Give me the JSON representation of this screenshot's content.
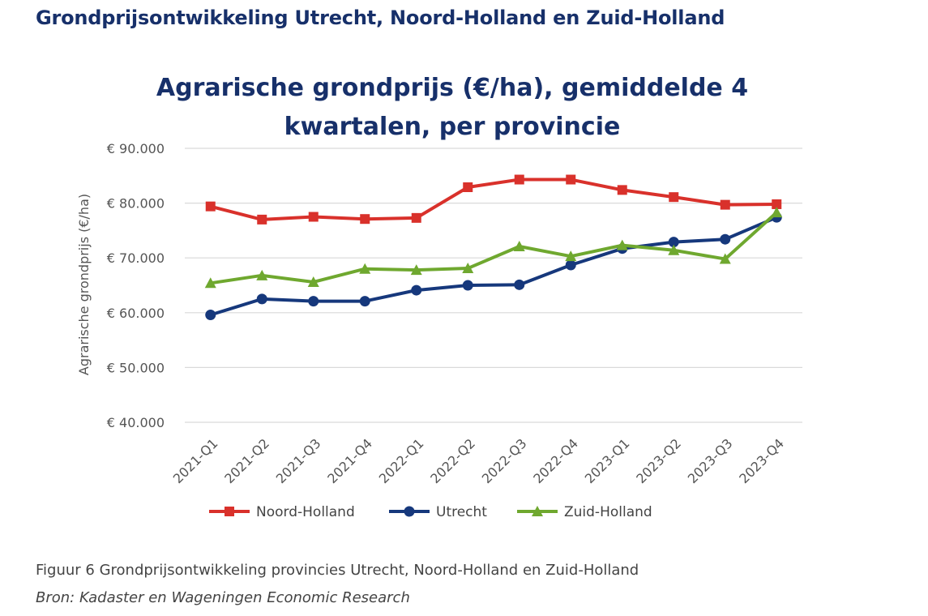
{
  "page": {
    "heading": "Grondprijsontwikkeling Utrecht, Noord-Holland en Zuid-Holland",
    "caption": "Figuur 6 Grondprijsontwikkeling provincies Utrecht, Noord-Holland en Zuid-Holland",
    "source": "Bron: Kadaster en Wageningen Economic Research"
  },
  "chart_data": {
    "type": "line",
    "title_lines": [
      "Agrarische grondprijs (€/ha), gemiddelde 4",
      "kwartalen, per provincie"
    ],
    "xlabel": "",
    "ylabel": "Agrarische grondprijs (€/ha)",
    "ylim": [
      40000,
      90000
    ],
    "yticks": [
      40000,
      50000,
      60000,
      70000,
      80000,
      90000
    ],
    "ytick_labels": [
      "€ 40.000",
      "€ 50.000",
      "€ 60.000",
      "€ 70.000",
      "€ 80.000",
      "€ 90.000"
    ],
    "grid": true,
    "legend_position": "bottom",
    "categories": [
      "2021-Q1",
      "2021-Q2",
      "2021-Q3",
      "2021-Q4",
      "2022-Q1",
      "2022-Q2",
      "2022-Q3",
      "2022-Q4",
      "2023-Q1",
      "2023-Q2",
      "2023-Q3",
      "2023-Q4"
    ],
    "series": [
      {
        "name": "Noord-Holland",
        "color": "#d9312b",
        "marker": "square",
        "values": [
          79400,
          77000,
          77500,
          77100,
          77300,
          82900,
          84300,
          84300,
          82400,
          81100,
          79700,
          79800
        ]
      },
      {
        "name": "Utrecht",
        "color": "#16387c",
        "marker": "circle",
        "values": [
          59600,
          62500,
          62100,
          62100,
          64100,
          65000,
          65100,
          68700,
          71700,
          72900,
          73400,
          77400
        ]
      },
      {
        "name": "Zuid-Holland",
        "color": "#6fa82f",
        "marker": "triangle",
        "values": [
          65400,
          66800,
          65600,
          68000,
          67800,
          68100,
          72100,
          70300,
          72300,
          71400,
          69800,
          78300
        ]
      }
    ]
  }
}
